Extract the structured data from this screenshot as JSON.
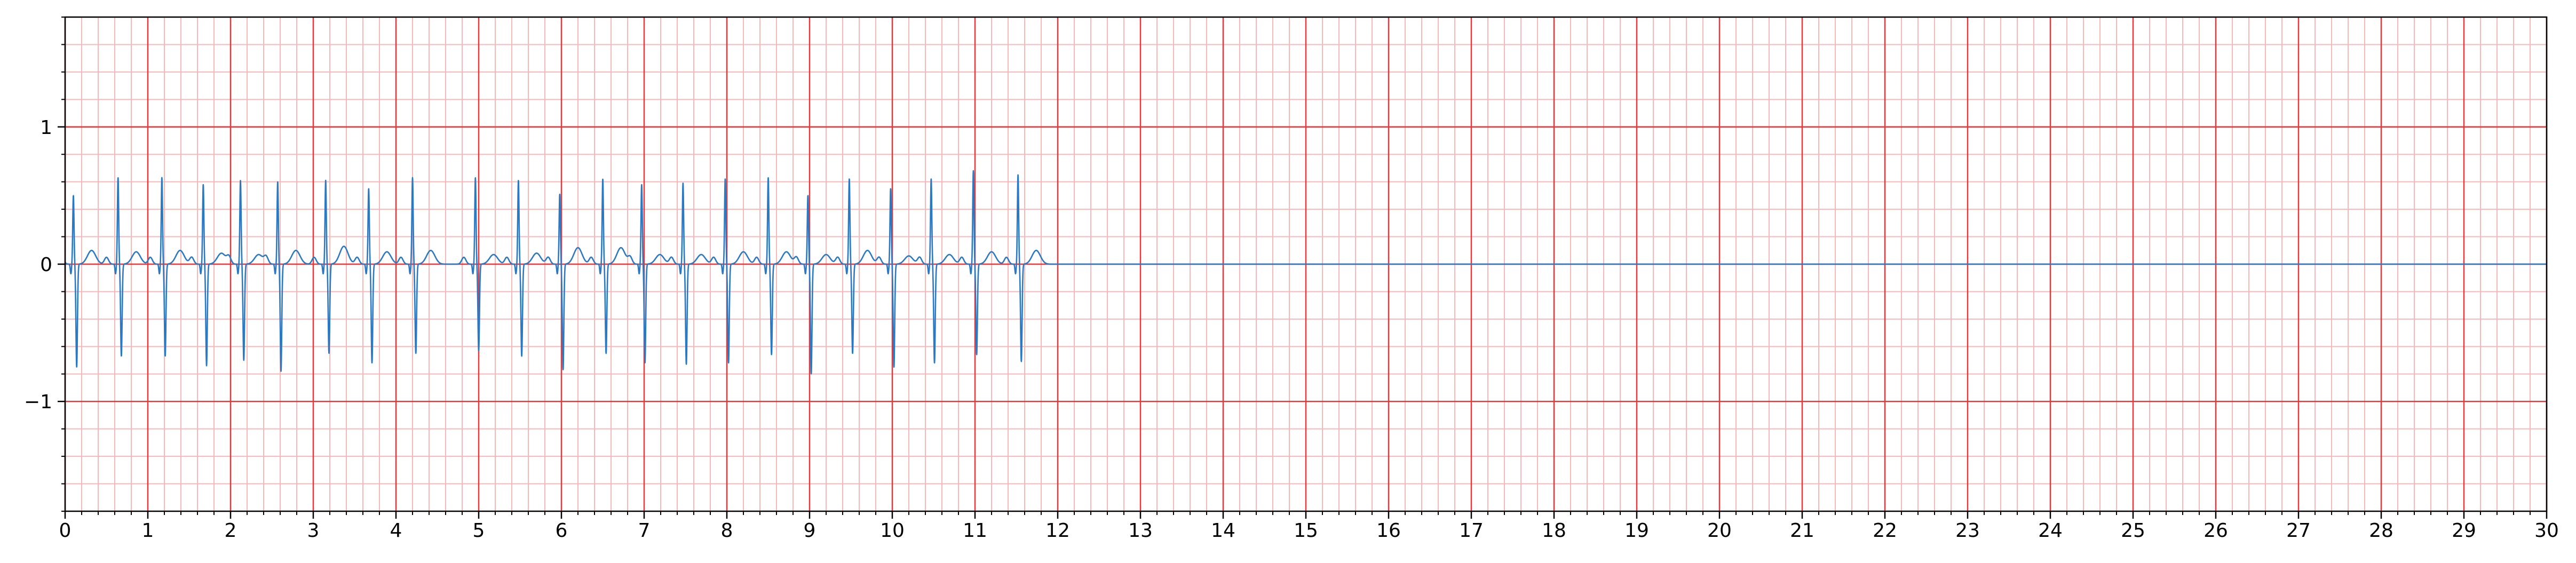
{
  "colors": {
    "background": "#ffffff",
    "major_grid": "#e8383a",
    "minor_grid": "#f7b8b8",
    "trace": "#2b79c2",
    "axes": "#000000"
  },
  "chart_data": {
    "type": "line",
    "title": "",
    "xlabel": "",
    "ylabel": "",
    "xlim": [
      0,
      30
    ],
    "ylim": [
      -1.8,
      1.8
    ],
    "grid": {
      "major": true,
      "minor": true,
      "major_x_step": 1,
      "minor_x_step": 0.2,
      "major_y_step": 1,
      "minor_y_step": 0.2
    },
    "x_ticks": [
      "0",
      "1",
      "2",
      "3",
      "4",
      "5",
      "6",
      "7",
      "8",
      "9",
      "10",
      "11",
      "12",
      "13",
      "14",
      "15",
      "16",
      "17",
      "18",
      "19",
      "20",
      "21",
      "22",
      "23",
      "24",
      "25",
      "26",
      "27",
      "28",
      "29",
      "30"
    ],
    "y_ticks": [
      {
        "value": 1,
        "label": "1"
      },
      {
        "value": 0,
        "label": "0"
      },
      {
        "value": -1,
        "label": "−1"
      }
    ],
    "series": [
      {
        "beat_times": [
          0.1,
          0.64,
          1.17,
          1.67,
          2.12,
          2.57,
          3.15,
          3.67,
          4.2,
          4.96,
          5.48,
          5.98,
          6.5,
          6.97,
          7.47,
          7.98,
          8.5,
          8.98,
          9.48,
          9.98,
          10.47,
          10.98,
          11.52
        ],
        "r_peaks": [
          0.5,
          0.63,
          0.63,
          0.58,
          0.61,
          0.6,
          0.61,
          0.55,
          0.63,
          0.63,
          0.61,
          0.51,
          0.62,
          0.58,
          0.59,
          0.62,
          0.63,
          0.5,
          0.62,
          0.55,
          0.62,
          0.68,
          0.65
        ],
        "s_troughs": [
          -0.75,
          -0.67,
          -0.67,
          -0.74,
          -0.7,
          -0.78,
          -0.65,
          -0.72,
          -0.65,
          -0.63,
          -0.67,
          -0.77,
          -0.65,
          -0.72,
          -0.73,
          -0.72,
          -0.66,
          -0.8,
          -0.65,
          -0.75,
          -0.72,
          -0.66,
          -0.71
        ],
        "t_wave_peaks": [
          0.1,
          0.09,
          0.1,
          0.08,
          0.07,
          0.1,
          0.13,
          0.09,
          0.1,
          0.07,
          0.08,
          0.12,
          0.12,
          0.07,
          0.07,
          0.09,
          0.09,
          0.07,
          0.1,
          0.06,
          0.07,
          0.09,
          0.1
        ],
        "signal_end": 12.0,
        "baseline": 0.0
      }
    ]
  }
}
